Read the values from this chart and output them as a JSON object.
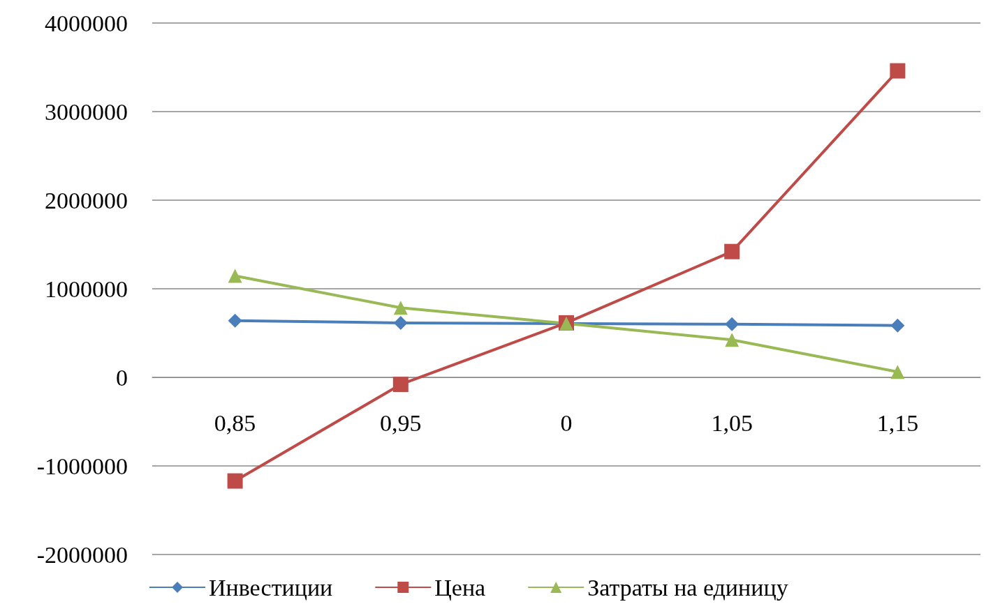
{
  "chart_data": {
    "type": "line",
    "categories": [
      "0,85",
      "0,95",
      "0",
      "1,05",
      "1,15"
    ],
    "series": [
      {
        "name": "Инвестиции",
        "color": "#4a7ebb",
        "marker": "diamond",
        "values": [
          640000,
          615000,
          null,
          600000,
          585000
        ]
      },
      {
        "name": "Цена",
        "color": "#be4b48",
        "marker": "square",
        "values": [
          -1170000,
          -80000,
          615000,
          1420000,
          3460000
        ]
      },
      {
        "name": "Затраты на единицу",
        "color": "#98b954",
        "marker": "triangle",
        "values": [
          1146000,
          785000,
          608000,
          423000,
          62000
        ]
      }
    ],
    "ylim": [
      -2000000,
      4000000
    ],
    "yticks": [
      -2000000,
      -1000000,
      0,
      1000000,
      2000000,
      3000000,
      4000000
    ],
    "grid": "y",
    "legend": "bottom"
  }
}
